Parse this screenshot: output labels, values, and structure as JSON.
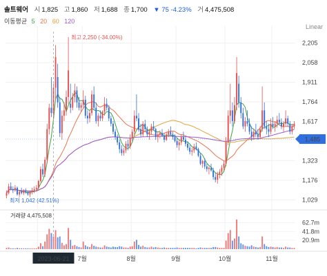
{
  "header": {
    "name": "솔트웨어",
    "open_label": "시",
    "open": "1,825",
    "high_label": "고",
    "high": "1,860",
    "low_label": "저",
    "low": "1,688",
    "close_label": "종",
    "close": "1,700",
    "change": "▼ 75 -4.23%",
    "volume_label": "거",
    "volume": "4,475,508"
  },
  "ma": {
    "label": "이동평균",
    "periods": [
      "5",
      "20",
      "60",
      "120"
    ],
    "colors": [
      "#3ca33c",
      "#e8734a",
      "#e3a23b",
      "#9b59d0"
    ]
  },
  "scale": {
    "type": "Linear"
  },
  "volume_panel": {
    "label": "거래량",
    "value": "4,475,508"
  },
  "annotations": {
    "high": "최고 2,250 (-34.00%)",
    "low": "최저 1,042 (42.51%)",
    "crosshair_date": "2023-06-21",
    "current_price": "1,485"
  },
  "colors": {
    "up": "#e84e4e",
    "down": "#2f6fe0",
    "current": "#2f6fe0"
  },
  "chart_data": {
    "type": "candlestick",
    "x_ticks": [
      "6월",
      "7월",
      "8월",
      "9월",
      "10월",
      "11월"
    ],
    "y_ticks": [
      2205,
      2058,
      1911,
      1764,
      1617,
      1470,
      1323,
      1176,
      1029
    ],
    "y_tick_labels": [
      "2,205",
      "2,058",
      "1,911",
      "1,764",
      "1,617",
      "1,323",
      "1,176",
      "1,029"
    ],
    "ylim": [
      1000,
      2270
    ],
    "volume_ticks": [
      "62.7m",
      "41.8m",
      "20.9m"
    ],
    "volume_tick_values": [
      62.7,
      41.8,
      20.9
    ],
    "volume_max": 78,
    "months": [
      {
        "label": "6월",
        "start": 15
      },
      {
        "label": "7월",
        "start": 36
      },
      {
        "label": "8월",
        "start": 59
      },
      {
        "label": "9월",
        "start": 80
      },
      {
        "label": "10월",
        "start": 103
      },
      {
        "label": "11월",
        "start": 125
      }
    ],
    "candles": [
      [
        1060,
        1100,
        1040,
        1080,
        3
      ],
      [
        1080,
        1150,
        1070,
        1130,
        4
      ],
      [
        1130,
        1160,
        1100,
        1110,
        2
      ],
      [
        1110,
        1130,
        1080,
        1100,
        2
      ],
      [
        1100,
        1140,
        1090,
        1120,
        2
      ],
      [
        1120,
        1130,
        1060,
        1070,
        3
      ],
      [
        1070,
        1100,
        1050,
        1090,
        2
      ],
      [
        1090,
        1120,
        1070,
        1080,
        2
      ],
      [
        1080,
        1110,
        1065,
        1100,
        2
      ],
      [
        1100,
        1115,
        1075,
        1085,
        2
      ],
      [
        1085,
        1100,
        1060,
        1070,
        2
      ],
      [
        1070,
        1100,
        1050,
        1090,
        2
      ],
      [
        1090,
        1120,
        1070,
        1100,
        2
      ],
      [
        1100,
        1130,
        1080,
        1110,
        2
      ],
      [
        1110,
        1140,
        1090,
        1120,
        2
      ],
      [
        1120,
        1180,
        1100,
        1170,
        6
      ],
      [
        1170,
        1280,
        1160,
        1260,
        14
      ],
      [
        1260,
        1300,
        1200,
        1220,
        7
      ],
      [
        1220,
        1350,
        1200,
        1330,
        18
      ],
      [
        1330,
        1600,
        1300,
        1560,
        35
      ],
      [
        1560,
        1750,
        1520,
        1720,
        48
      ],
      [
        1720,
        1950,
        1650,
        1680,
        38
      ],
      [
        1680,
        1900,
        1640,
        1870,
        30
      ],
      [
        1870,
        2190,
        1780,
        2100,
        45
      ],
      [
        1950,
        2050,
        1720,
        1760,
        28
      ],
      [
        1760,
        1800,
        1500,
        1530,
        30
      ],
      [
        1530,
        1700,
        1480,
        1660,
        15
      ],
      [
        1660,
        1760,
        1620,
        1700,
        9
      ],
      [
        1700,
        1850,
        1660,
        1800,
        12
      ],
      [
        1800,
        2250,
        1750,
        2000,
        50
      ],
      [
        1750,
        1900,
        1680,
        1720,
        22
      ],
      [
        1720,
        1830,
        1700,
        1800,
        8
      ],
      [
        1800,
        1900,
        1760,
        1850,
        10
      ],
      [
        1850,
        1880,
        1720,
        1760,
        7
      ],
      [
        1760,
        1800,
        1700,
        1720,
        5
      ],
      [
        1720,
        1760,
        1690,
        1740,
        4
      ],
      [
        1740,
        1850,
        1720,
        1780,
        18
      ],
      [
        1780,
        1810,
        1640,
        1660,
        9
      ],
      [
        1660,
        1700,
        1600,
        1640,
        6
      ],
      [
        1640,
        1700,
        1610,
        1680,
        5
      ],
      [
        1680,
        1850,
        1660,
        1820,
        12
      ],
      [
        1820,
        1880,
        1700,
        1720,
        8
      ],
      [
        1720,
        1760,
        1600,
        1620,
        6
      ],
      [
        1620,
        1680,
        1580,
        1660,
        5
      ],
      [
        1660,
        1700,
        1620,
        1640,
        4
      ],
      [
        1640,
        1700,
        1620,
        1690,
        4
      ],
      [
        1690,
        1800,
        1660,
        1750,
        9
      ],
      [
        1750,
        1790,
        1700,
        1720,
        6
      ],
      [
        1720,
        1740,
        1620,
        1640,
        5
      ],
      [
        1640,
        1660,
        1580,
        1600,
        4
      ],
      [
        1600,
        1620,
        1520,
        1540,
        6
      ],
      [
        1540,
        1560,
        1480,
        1500,
        5
      ],
      [
        1500,
        1520,
        1440,
        1460,
        5
      ],
      [
        1460,
        1480,
        1380,
        1410,
        7
      ],
      [
        1410,
        1440,
        1360,
        1380,
        6
      ],
      [
        1380,
        1420,
        1360,
        1400,
        4
      ],
      [
        1400,
        1470,
        1380,
        1450,
        4
      ],
      [
        1450,
        1480,
        1400,
        1430,
        3
      ],
      [
        1430,
        1520,
        1410,
        1490,
        6
      ],
      [
        1490,
        1560,
        1470,
        1540,
        7
      ],
      [
        1540,
        1700,
        1520,
        1660,
        18
      ],
      [
        1660,
        1820,
        1620,
        1640,
        22
      ],
      [
        1640,
        1680,
        1540,
        1560,
        10
      ],
      [
        1560,
        1600,
        1500,
        1520,
        6
      ],
      [
        1520,
        1620,
        1500,
        1600,
        8
      ],
      [
        1600,
        1630,
        1540,
        1560,
        5
      ],
      [
        1560,
        1580,
        1500,
        1520,
        4
      ],
      [
        1520,
        1560,
        1480,
        1540,
        4
      ],
      [
        1540,
        1600,
        1520,
        1580,
        6
      ],
      [
        1580,
        1620,
        1550,
        1560,
        4
      ],
      [
        1560,
        1570,
        1480,
        1500,
        5
      ],
      [
        1500,
        1540,
        1460,
        1520,
        4
      ],
      [
        1520,
        1550,
        1490,
        1530,
        3
      ],
      [
        1530,
        1560,
        1500,
        1510,
        3
      ],
      [
        1510,
        1530,
        1460,
        1480,
        4
      ],
      [
        1480,
        1540,
        1470,
        1520,
        3
      ],
      [
        1520,
        1560,
        1500,
        1540,
        3
      ],
      [
        1540,
        1580,
        1510,
        1520,
        3
      ],
      [
        1520,
        1540,
        1480,
        1500,
        3
      ],
      [
        1500,
        1520,
        1460,
        1470,
        3
      ],
      [
        1470,
        1490,
        1420,
        1440,
        4
      ],
      [
        1440,
        1480,
        1400,
        1460,
        3
      ],
      [
        1460,
        1520,
        1440,
        1500,
        3
      ],
      [
        1500,
        1540,
        1470,
        1480,
        3
      ],
      [
        1480,
        1500,
        1430,
        1450,
        3
      ],
      [
        1450,
        1470,
        1400,
        1420,
        3
      ],
      [
        1420,
        1440,
        1370,
        1390,
        3
      ],
      [
        1390,
        1420,
        1360,
        1400,
        3
      ],
      [
        1400,
        1450,
        1380,
        1430,
        3
      ],
      [
        1430,
        1460,
        1400,
        1410,
        2
      ],
      [
        1410,
        1420,
        1350,
        1360,
        3
      ],
      [
        1360,
        1380,
        1290,
        1300,
        4
      ],
      [
        1300,
        1330,
        1270,
        1320,
        3
      ],
      [
        1320,
        1340,
        1260,
        1280,
        3
      ],
      [
        1280,
        1300,
        1240,
        1260,
        3
      ],
      [
        1260,
        1280,
        1220,
        1270,
        3
      ],
      [
        1270,
        1300,
        1240,
        1250,
        3
      ],
      [
        1250,
        1270,
        1180,
        1200,
        5
      ],
      [
        1200,
        1230,
        1160,
        1180,
        5
      ],
      [
        1180,
        1240,
        1150,
        1220,
        4
      ],
      [
        1220,
        1260,
        1190,
        1240,
        3
      ],
      [
        1240,
        1290,
        1210,
        1270,
        3
      ],
      [
        1270,
        1320,
        1250,
        1300,
        3
      ],
      [
        1300,
        1500,
        1280,
        1460,
        20
      ],
      [
        1460,
        1700,
        1440,
        1660,
        38
      ],
      [
        1660,
        1900,
        1600,
        1700,
        45
      ],
      [
        1700,
        1760,
        1580,
        1620,
        20
      ],
      [
        1620,
        1800,
        1600,
        1740,
        25
      ],
      [
        1740,
        2100,
        1700,
        1980,
        70
      ],
      [
        1900,
        1960,
        1720,
        1760,
        30
      ],
      [
        1760,
        1800,
        1640,
        1680,
        14
      ],
      [
        1680,
        1720,
        1560,
        1580,
        11
      ],
      [
        1580,
        1650,
        1540,
        1620,
        8
      ],
      [
        1620,
        1700,
        1580,
        1600,
        7
      ],
      [
        1600,
        1640,
        1520,
        1540,
        6
      ],
      [
        1540,
        1580,
        1470,
        1500,
        9
      ],
      [
        1500,
        1560,
        1480,
        1540,
        6
      ],
      [
        1540,
        1600,
        1500,
        1520,
        5
      ],
      [
        1520,
        1560,
        1480,
        1500,
        4
      ],
      [
        1500,
        1580,
        1490,
        1560,
        5
      ],
      [
        1560,
        1880,
        1540,
        1700,
        30
      ],
      [
        1700,
        1760,
        1560,
        1580,
        12
      ],
      [
        1580,
        1620,
        1520,
        1560,
        7
      ],
      [
        1560,
        1600,
        1500,
        1540,
        5
      ],
      [
        1540,
        1640,
        1520,
        1600,
        6
      ],
      [
        1600,
        1650,
        1560,
        1580,
        5
      ],
      [
        1580,
        1620,
        1540,
        1600,
        4
      ],
      [
        1600,
        1660,
        1570,
        1630,
        5
      ],
      [
        1630,
        1680,
        1590,
        1610,
        4
      ],
      [
        1610,
        1640,
        1560,
        1580,
        4
      ],
      [
        1580,
        1620,
        1540,
        1600,
        3
      ],
      [
        1600,
        1700,
        1580,
        1640,
        6
      ],
      [
        1640,
        1660,
        1580,
        1600,
        4
      ],
      [
        1600,
        1620,
        1520,
        1540,
        4
      ],
      [
        1540,
        1600,
        1520,
        1580,
        3
      ],
      [
        1580,
        1620,
        1560,
        1600,
        3
      ]
    ]
  }
}
